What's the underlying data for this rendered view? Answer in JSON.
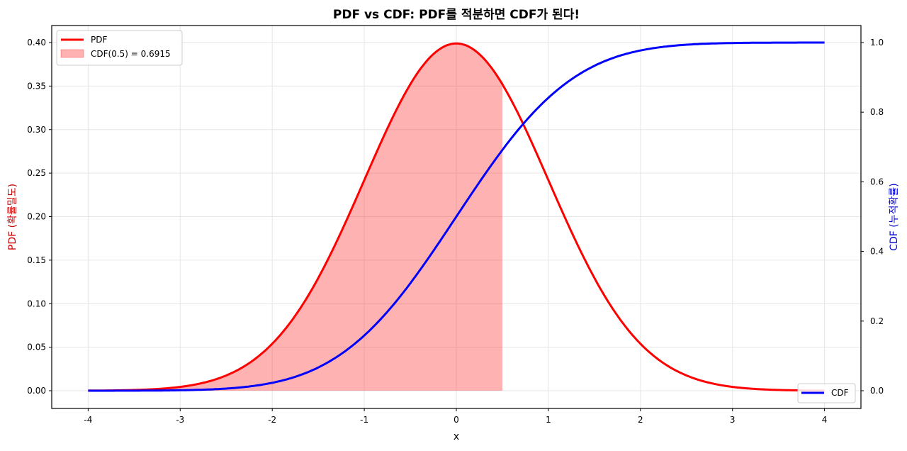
{
  "chart_data": {
    "type": "line",
    "title": "PDF vs CDF: PDF를 적분하면 CDF가 된다!",
    "xlabel": "x",
    "ylabel_left": "PDF (확률밀도)",
    "ylabel_right": "CDF (누적확률)",
    "xlim": [
      -4.4,
      4.4
    ],
    "ylim_left": [
      -0.02,
      0.42
    ],
    "ylim_right": [
      -0.05,
      1.05
    ],
    "x_ticks": [
      "-4",
      "-3",
      "-2",
      "-1",
      "0",
      "1",
      "2",
      "3",
      "4"
    ],
    "y_left_ticks": [
      "0.00",
      "0.05",
      "0.10",
      "0.15",
      "0.20",
      "0.25",
      "0.30",
      "0.35",
      "0.40"
    ],
    "y_right_ticks": [
      "0.0",
      "0.2",
      "0.4",
      "0.6",
      "0.8",
      "1.0"
    ],
    "grid": true,
    "series": [
      {
        "name": "PDF",
        "axis": "left",
        "color": "#ff0000",
        "function": "standard normal pdf",
        "x": [
          -4,
          -3.5,
          -3,
          -2.5,
          -2,
          -1.5,
          -1,
          -0.5,
          0,
          0.5,
          1,
          1.5,
          2,
          2.5,
          3,
          3.5,
          4
        ],
        "values": [
          0.0001,
          0.0009,
          0.0044,
          0.0175,
          0.054,
          0.1295,
          0.242,
          0.3521,
          0.3989,
          0.3521,
          0.242,
          0.1295,
          0.054,
          0.0175,
          0.0044,
          0.0009,
          0.0001
        ]
      },
      {
        "name": "CDF",
        "axis": "right",
        "color": "#0000ff",
        "function": "standard normal cdf",
        "x": [
          -4,
          -3.5,
          -3,
          -2.5,
          -2,
          -1.5,
          -1,
          -0.5,
          0,
          0.5,
          1,
          1.5,
          2,
          2.5,
          3,
          3.5,
          4
        ],
        "values": [
          0.0,
          0.0002,
          0.0013,
          0.0062,
          0.0228,
          0.0668,
          0.1587,
          0.3085,
          0.5,
          0.6915,
          0.8413,
          0.9332,
          0.9772,
          0.9938,
          0.9987,
          0.9998,
          1.0
        ]
      }
    ],
    "fill": {
      "name": "CDF(0.5) = 0.6915",
      "from_x": -4,
      "to_x": 0.5,
      "under": "PDF",
      "color": "#ff0000",
      "alpha": 0.3
    },
    "legend_left": {
      "position": "upper left",
      "entries": [
        "PDF",
        "CDF(0.5) = 0.6915"
      ]
    },
    "legend_right": {
      "position": "lower right",
      "entries": [
        "CDF"
      ]
    }
  }
}
